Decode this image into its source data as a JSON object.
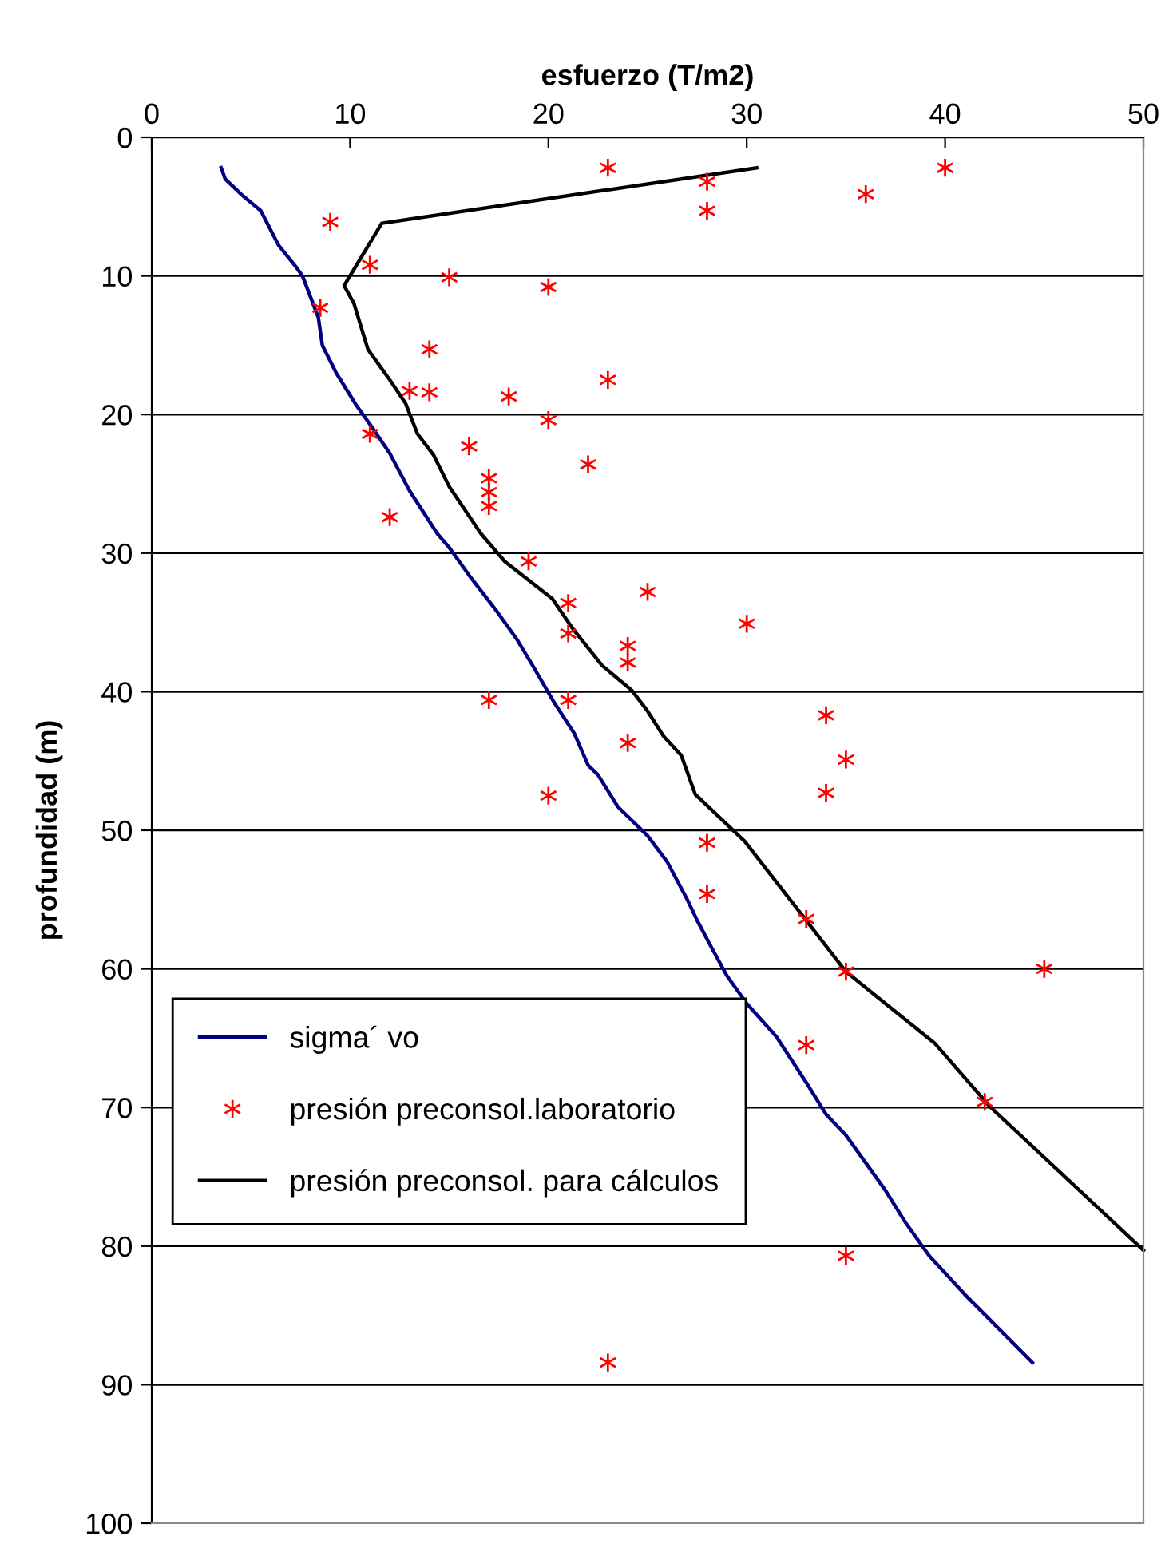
{
  "chart_data": {
    "type": "line",
    "xlabel": "esfuerzo (T/m2)",
    "ylabel": "profundidad (m)",
    "xlim": [
      0,
      50
    ],
    "xticks": [
      0,
      10,
      20,
      30,
      40,
      50
    ],
    "ylim": [
      100,
      0
    ],
    "yticks": [
      0,
      10,
      20,
      30,
      40,
      50,
      60,
      70,
      80,
      90,
      100
    ],
    "grid": "y",
    "legend": "bottom left",
    "series": [
      {
        "name": "sigma´ vo",
        "color": "#000080",
        "marker": "none",
        "line_style": "solid",
        "x": [
          3.5,
          3.7,
          4.5,
          5.5,
          6.4,
          7.3,
          7.6,
          8,
          8.4,
          8.6,
          9.3,
          10.3,
          11,
          12,
          13,
          14.4,
          15,
          16,
          17.4,
          18.4,
          19.2,
          20.3,
          21.3,
          22,
          22.5,
          23.5,
          25,
          26,
          27,
          27.5,
          28.2,
          29,
          30,
          31.5,
          33,
          34,
          35,
          36,
          37,
          38,
          39.2,
          41,
          44.4
        ],
        "values": [
          2.2,
          3,
          4.1,
          5.3,
          7.8,
          9.4,
          10,
          11.5,
          13,
          15,
          17,
          19.3,
          20.7,
          22.8,
          25.5,
          28.6,
          29.6,
          31.6,
          34.2,
          36.2,
          38.1,
          40.8,
          43,
          45.3,
          46,
          48.3,
          50.4,
          52.3,
          55,
          56.5,
          58.4,
          60.5,
          62.5,
          64.9,
          68.2,
          70.5,
          72,
          74,
          76,
          78.3,
          80.7,
          83.5,
          88.4
        ]
      },
      {
        "name": "presión preconsol.laboratorio",
        "type": "scatter",
        "color": "#ff0000",
        "marker": "cross",
        "x": [
          23,
          40,
          28,
          36,
          28,
          9,
          11,
          15,
          20,
          8.5,
          14,
          13,
          14,
          18,
          23,
          20,
          11,
          16,
          22,
          17,
          17,
          17,
          12,
          19,
          25,
          21,
          30,
          21,
          24,
          24,
          17,
          21,
          34,
          24,
          35,
          34,
          20,
          28,
          28,
          33,
          35,
          45,
          33,
          42,
          35,
          23
        ],
        "values": [
          2.2,
          2.2,
          3.2,
          4.1,
          5.3,
          6.1,
          9.2,
          10.1,
          10.8,
          12.3,
          15.3,
          18.3,
          18.4,
          18.7,
          17.5,
          20.4,
          21.4,
          22.3,
          23.6,
          24.6,
          25.6,
          26.6,
          27.4,
          30.6,
          32.8,
          33.6,
          35.1,
          35.8,
          36.7,
          37.9,
          40.6,
          40.6,
          41.7,
          43.7,
          44.9,
          47.3,
          47.5,
          50.9,
          54.6,
          56.4,
          60.2,
          60,
          65.5,
          69.6,
          80.7,
          88.4
        ]
      },
      {
        "name": "presión preconsol. para cálculos",
        "color": "#000000",
        "marker": "none",
        "line_style": "solid",
        "x": [
          30.5,
          11.6,
          9.7,
          10.2,
          10.9,
          12,
          12.8,
          13.4,
          14.2,
          15,
          16.6,
          17.8,
          20.2,
          21.2,
          22.7,
          24.2,
          25,
          25.8,
          26.7,
          27.4,
          29.9,
          35,
          39.5,
          42.3,
          50
        ],
        "values": [
          2.2,
          6.2,
          10.7,
          12,
          15.3,
          17.5,
          19.2,
          21.4,
          22.9,
          25.2,
          28.6,
          30.6,
          33.3,
          35.4,
          38.1,
          39.9,
          41.4,
          43.2,
          44.6,
          47.4,
          50.8,
          60.2,
          65.4,
          70,
          80.3
        ]
      }
    ]
  }
}
